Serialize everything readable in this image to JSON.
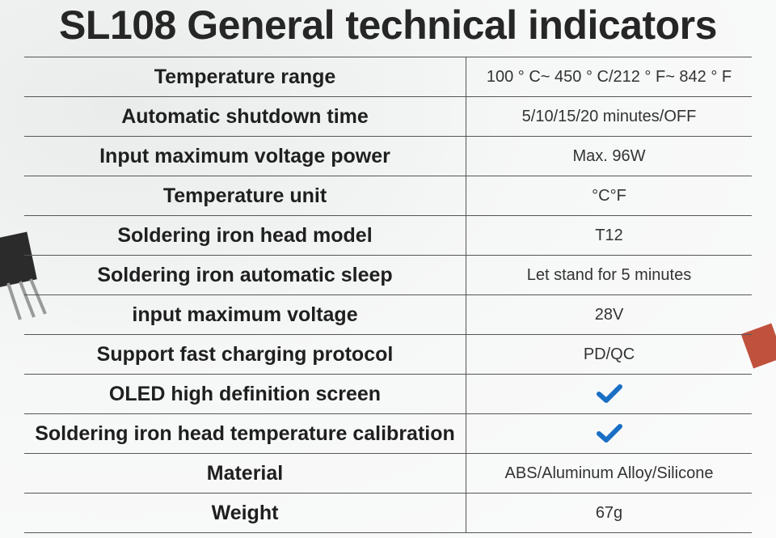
{
  "title": "SL108 General technical indicators",
  "table": {
    "rows": [
      {
        "label": "Temperature range",
        "value": "100 ° C~ 450 ° C/212 ° F~ 842 ° F"
      },
      {
        "label": "Automatic shutdown time",
        "value": "5/10/15/20 minutes/OFF"
      },
      {
        "label": "Input maximum voltage power",
        "value": "Max. 96W"
      },
      {
        "label": "Temperature unit",
        "value": "°C°F"
      },
      {
        "label": "Soldering iron head model",
        "value": "T12"
      },
      {
        "label": "Soldering iron automatic sleep",
        "value": "Let stand for 5 minutes"
      },
      {
        "label": "input maximum voltage",
        "value": "28V"
      },
      {
        "label": "Support fast charging protocol",
        "value": "PD/QC"
      },
      {
        "label": "OLED high definition screen"
      },
      {
        "label": "Soldering iron head temperature calibration"
      },
      {
        "label": "Material",
        "value": "ABS/Aluminum Alloy/Silicone"
      },
      {
        "label": "Weight",
        "value": "67g"
      }
    ]
  }
}
